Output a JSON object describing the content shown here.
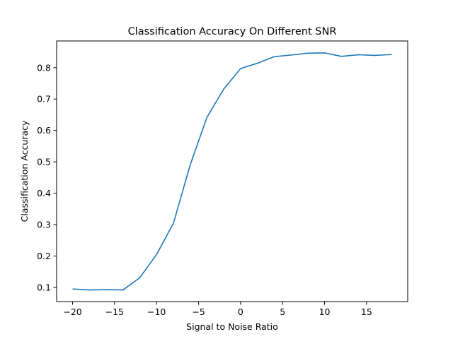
{
  "chart_data": {
    "type": "line",
    "title": "Classification Accuracy On Different SNR",
    "xlabel": "Signal to Noise Ratio",
    "ylabel": "Classification Accuracy",
    "xlim": [
      -21.9,
      19.9
    ],
    "ylim": [
      0.055,
      0.885
    ],
    "xticks": [
      -20,
      -15,
      -10,
      -5,
      0,
      5,
      10,
      15
    ],
    "xtick_labels": [
      "−20",
      "−15",
      "−10",
      "−5",
      "0",
      "5",
      "10",
      "15"
    ],
    "yticks": [
      0.1,
      0.2,
      0.3,
      0.4,
      0.5,
      0.6,
      0.7,
      0.8
    ],
    "ytick_labels": [
      "0.1",
      "0.2",
      "0.3",
      "0.4",
      "0.5",
      "0.6",
      "0.7",
      "0.8"
    ],
    "grid": false,
    "series": [
      {
        "color": "#1f77b4",
        "x": [
          -20,
          -18,
          -16,
          -14,
          -12,
          -10,
          -8,
          -6,
          -4,
          -2,
          0,
          2,
          4,
          6,
          8,
          10,
          12,
          14,
          16,
          18
        ],
        "y": [
          0.095,
          0.092,
          0.093,
          0.092,
          0.131,
          0.205,
          0.304,
          0.49,
          0.642,
          0.732,
          0.797,
          0.814,
          0.835,
          0.84,
          0.846,
          0.847,
          0.836,
          0.841,
          0.839,
          0.842
        ]
      }
    ]
  }
}
